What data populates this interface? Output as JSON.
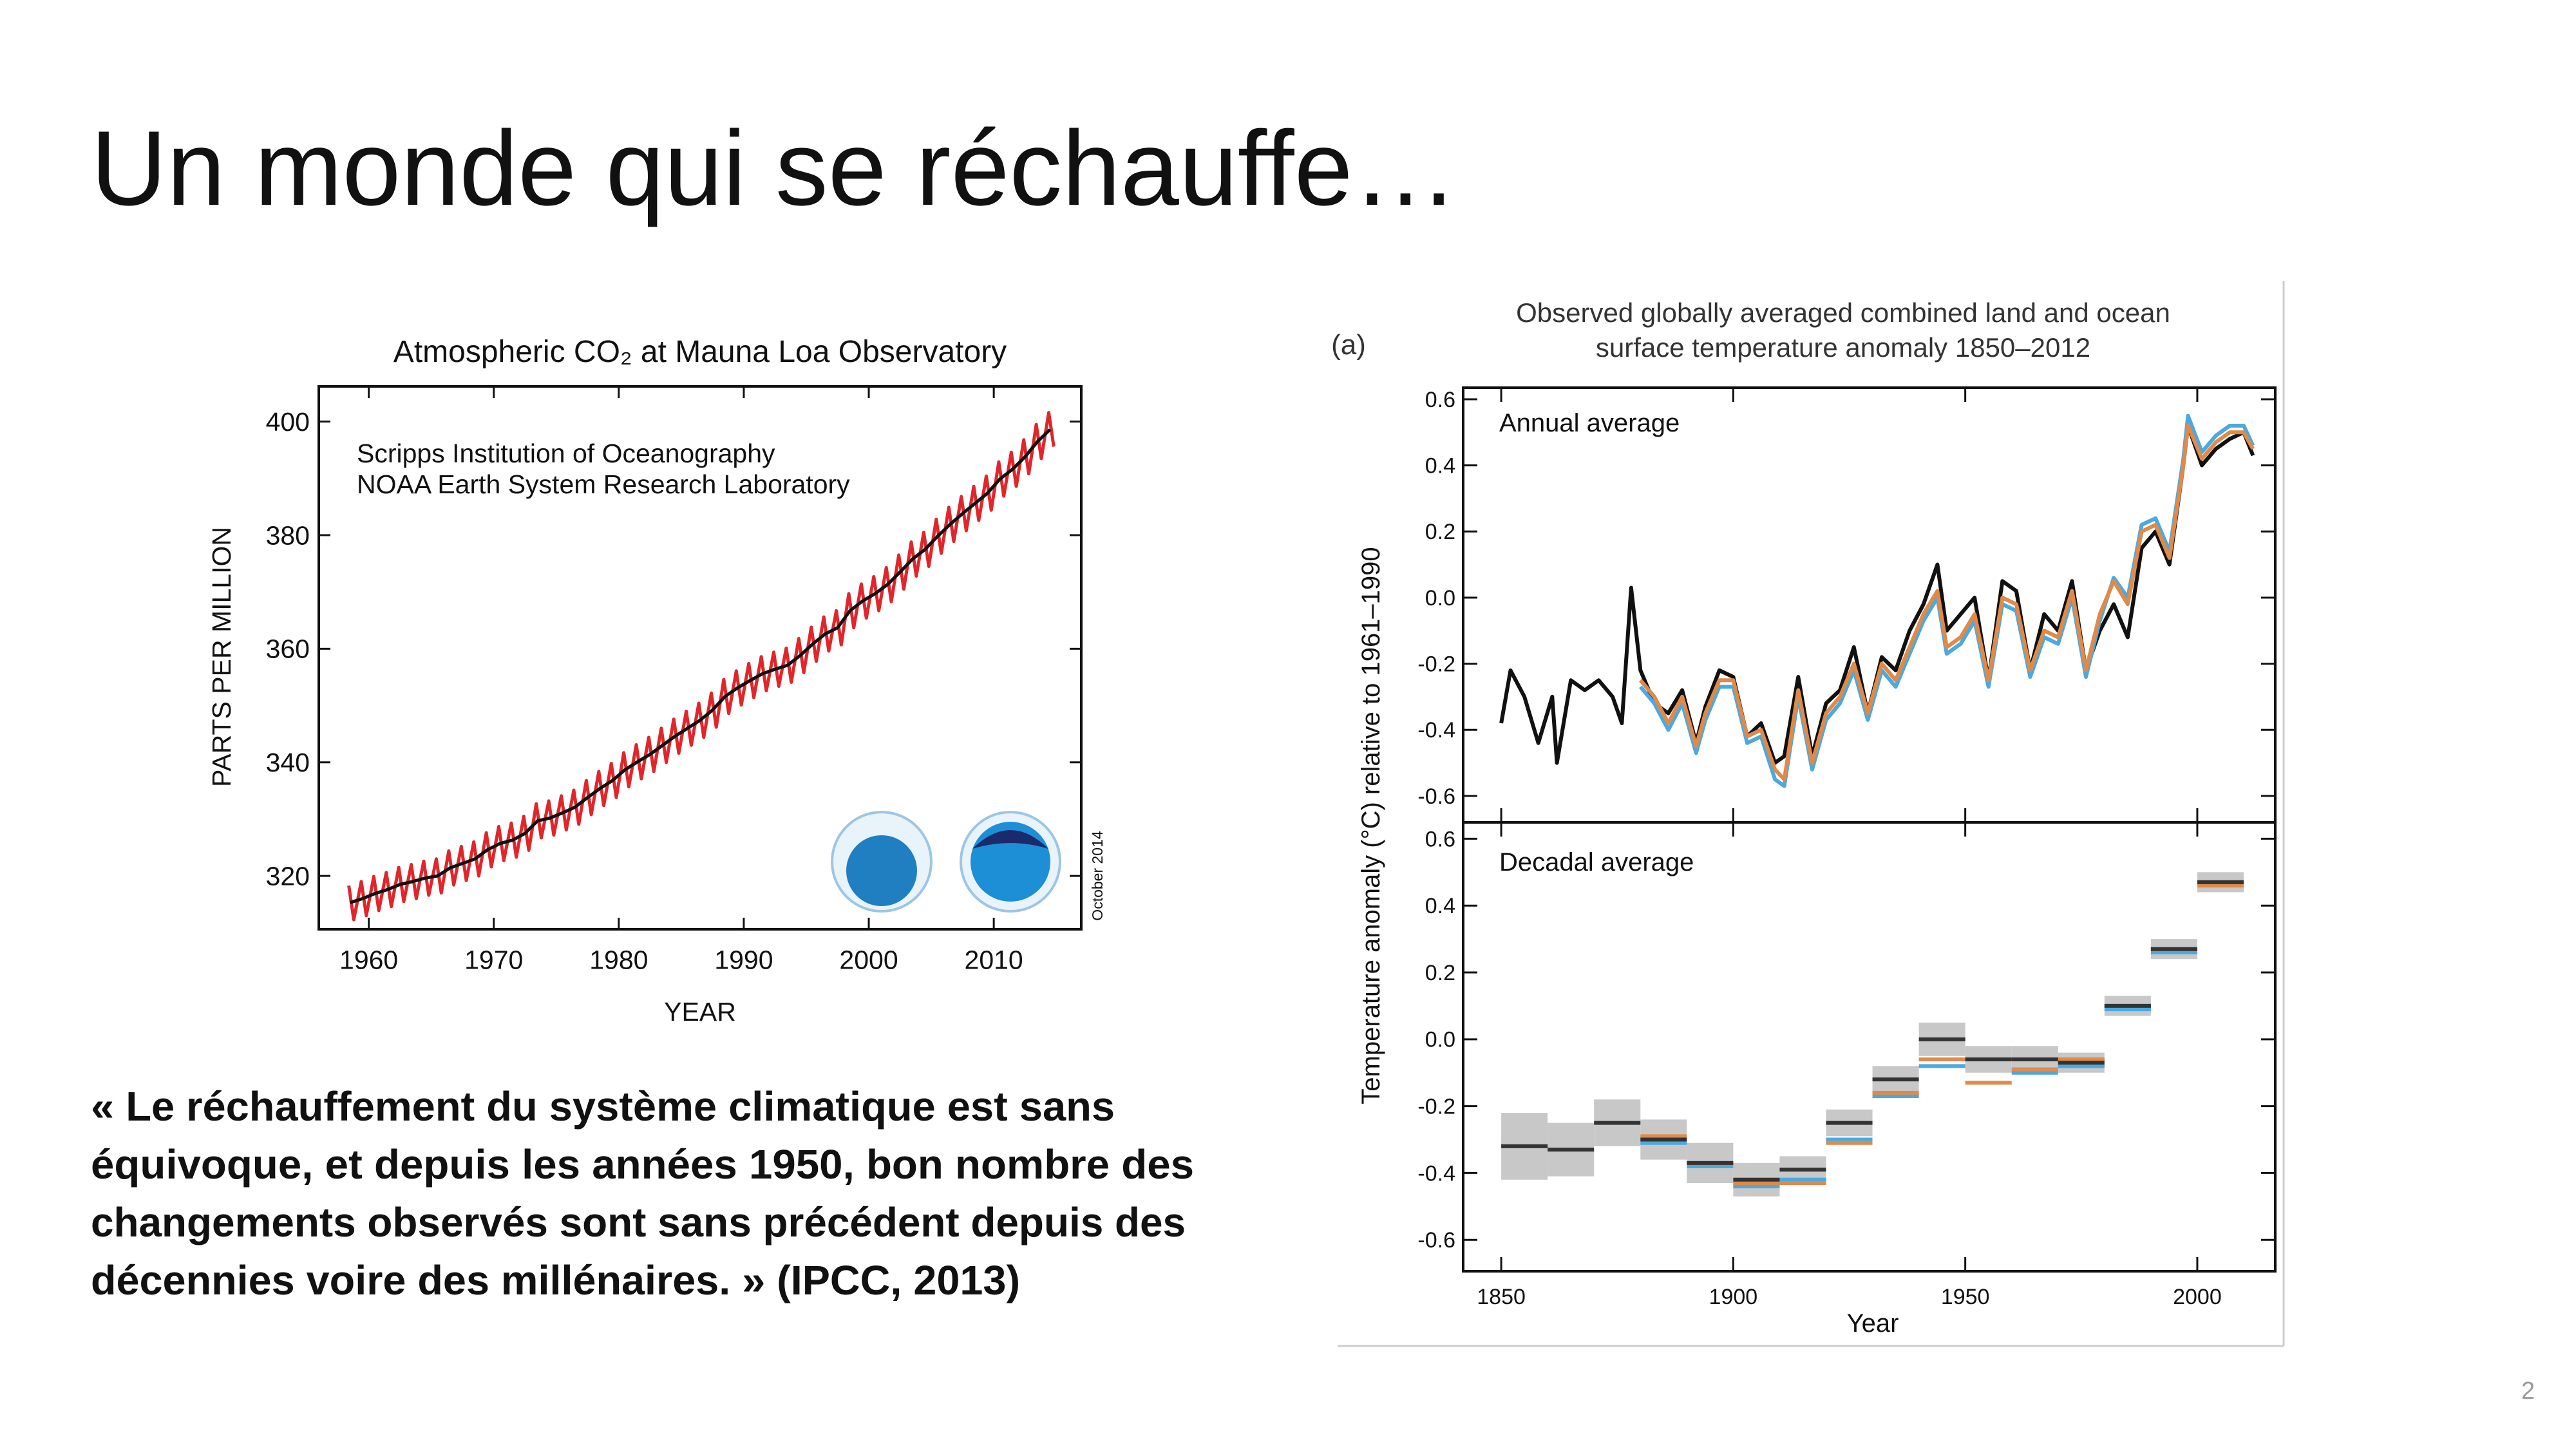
{
  "slide": {
    "title": "Un monde qui se réchauffe…",
    "quote": [
      "« Le réchauffement du système climatique est sans",
      "équivoque, et depuis les années 1950, bon nombre des",
      "changements observés sont sans précédent depuis des",
      "décennies voire des millénaires. » (IPCC, 2013)"
    ],
    "page_number": "2"
  },
  "chart_data": [
    {
      "type": "line",
      "title": "Atmospheric CO₂ at Mauna Loa Observatory",
      "annotations": [
        "Scripps Institution of Oceanography",
        "NOAA Earth System Research Laboratory",
        "October 2014"
      ],
      "xlabel": "YEAR",
      "ylabel": "PARTS PER MILLION",
      "xlim": [
        1956,
        2017
      ],
      "ylim": [
        310.6,
        406.2
      ],
      "xticks": [
        1960,
        1970,
        1980,
        1990,
        2000,
        2010
      ],
      "yticks": [
        320,
        340,
        360,
        380,
        400
      ],
      "series": [
        {
          "color": "#e0262b",
          "x": [
            1958.4,
            1958.8,
            1959.4,
            1959.8,
            1960.4,
            1960.8,
            1961.4,
            1961.8,
            1962.4,
            1962.8,
            1963.4,
            1963.8,
            1964.4,
            1964.8,
            1965.4,
            1965.8,
            1966.4,
            1966.8,
            1967.4,
            1967.8,
            1968.4,
            1968.8,
            1969.4,
            1969.8,
            1970.4,
            1970.8,
            1971.4,
            1971.8,
            1972.4,
            1972.8,
            1973.4,
            1973.8,
            1974.4,
            1974.8,
            1975.4,
            1975.8,
            1976.4,
            1976.8,
            1977.4,
            1977.8,
            1978.4,
            1978.8,
            1979.4,
            1979.8,
            1980.4,
            1980.8,
            1981.4,
            1981.8,
            1982.4,
            1982.8,
            1983.4,
            1983.8,
            1984.4,
            1984.8,
            1985.4,
            1985.8,
            1986.4,
            1986.8,
            1987.4,
            1987.8,
            1988.4,
            1988.8,
            1989.4,
            1989.8,
            1990.4,
            1990.8,
            1991.4,
            1991.8,
            1992.4,
            1992.8,
            1993.4,
            1993.8,
            1994.4,
            1994.8,
            1995.4,
            1995.8,
            1996.4,
            1996.8,
            1997.4,
            1997.8,
            1998.4,
            1998.8,
            1999.4,
            1999.8,
            2000.4,
            2000.8,
            2001.4,
            2001.8,
            2002.4,
            2002.8,
            2003.4,
            2003.8,
            2004.4,
            2004.8,
            2005.4,
            2005.8,
            2006.4,
            2006.8,
            2007.4,
            2007.8,
            2008.4,
            2008.8,
            2009.4,
            2009.8,
            2010.4,
            2010.8,
            2011.4,
            2011.8,
            2012.4,
            2012.8,
            2013.4,
            2013.8,
            2014.4,
            2014.8
          ],
          "values": [
            318.3,
            312.3,
            319.0,
            313.0,
            319.9,
            313.9,
            320.6,
            314.6,
            321.5,
            315.5,
            322.0,
            316.0,
            322.6,
            316.6,
            323.0,
            317.0,
            324.4,
            318.4,
            325.2,
            319.2,
            326.0,
            320.0,
            327.6,
            321.6,
            328.7,
            322.7,
            329.3,
            323.3,
            330.5,
            324.5,
            332.7,
            326.7,
            333.2,
            327.2,
            334.1,
            328.1,
            335.1,
            329.1,
            336.8,
            330.8,
            338.4,
            332.4,
            339.8,
            333.8,
            341.7,
            335.7,
            343.1,
            337.1,
            344.4,
            338.4,
            346.0,
            340.0,
            347.6,
            341.6,
            349.0,
            343.0,
            350.4,
            344.4,
            352.2,
            346.2,
            354.6,
            348.6,
            356.1,
            350.1,
            357.4,
            351.4,
            358.6,
            352.6,
            359.4,
            353.4,
            360.1,
            354.1,
            361.8,
            355.8,
            363.8,
            357.8,
            365.6,
            359.6,
            366.7,
            360.7,
            369.7,
            363.7,
            371.4,
            365.4,
            372.7,
            366.7,
            374.3,
            368.3,
            376.5,
            370.5,
            378.8,
            372.8,
            380.5,
            374.5,
            382.8,
            376.8,
            384.9,
            378.9,
            386.8,
            380.8,
            388.6,
            382.6,
            390.4,
            384.4,
            392.9,
            386.9,
            394.6,
            388.6,
            396.8,
            390.8,
            399.5,
            393.5,
            401.6,
            395.6
          ]
        },
        {
          "color": "#111111",
          "x": [
            1958.5,
            1959.5,
            1960.5,
            1961.5,
            1962.5,
            1963.5,
            1964.5,
            1965.5,
            1966.5,
            1967.5,
            1968.5,
            1969.5,
            1970.5,
            1971.5,
            1972.5,
            1973.5,
            1974.5,
            1975.5,
            1976.5,
            1977.5,
            1978.5,
            1979.5,
            1980.5,
            1981.5,
            1982.5,
            1983.5,
            1984.5,
            1985.5,
            1986.5,
            1987.5,
            1988.5,
            1989.5,
            1990.5,
            1991.5,
            1992.5,
            1993.5,
            1994.5,
            1995.5,
            1996.5,
            1997.5,
            1998.5,
            1999.5,
            2000.5,
            2001.5,
            2002.5,
            2003.5,
            2004.5,
            2005.5,
            2006.5,
            2007.5,
            2008.5,
            2009.5,
            2010.5,
            2011.5,
            2012.5,
            2013.5,
            2014.5
          ],
          "values": [
            315.3,
            316.0,
            316.9,
            317.6,
            318.5,
            319.0,
            319.6,
            320.0,
            321.4,
            322.2,
            323.0,
            324.6,
            325.7,
            326.3,
            327.5,
            329.7,
            330.2,
            331.1,
            332.1,
            333.8,
            335.4,
            336.8,
            338.7,
            340.1,
            341.4,
            343.0,
            344.6,
            346.0,
            347.4,
            349.2,
            351.6,
            353.1,
            354.4,
            355.6,
            356.4,
            357.1,
            358.8,
            360.8,
            362.6,
            363.7,
            366.7,
            368.4,
            369.7,
            371.3,
            373.5,
            375.8,
            377.5,
            379.8,
            381.9,
            383.8,
            385.6,
            387.4,
            389.9,
            391.6,
            393.8,
            396.5,
            398.6
          ]
        }
      ]
    },
    {
      "type": "line",
      "title": [
        "Observed globally averaged combined land and ocean",
        "surface temperature anomaly 1850–2012"
      ],
      "panel_label": "(a)",
      "annotation": "Annual average",
      "ylabel": "Temperature anomaly (°C) relative to 1961–1990",
      "xlim": [
        1841.8,
        2016.8
      ],
      "ylim": [
        -0.68,
        0.635
      ],
      "xticks": [
        1850,
        1900,
        1950,
        2000
      ],
      "yticks": [
        -0.6,
        -0.4,
        -0.2,
        {
          "value": 0,
          "label": "0.0"
        },
        0.2,
        0.4,
        0.6
      ],
      "series": [
        {
          "color": "#111111",
          "x": [
            1850,
            1852,
            1855,
            1858,
            1861,
            1862,
            1865,
            1868,
            1871,
            1874,
            1876,
            1878,
            1880,
            1883,
            1886,
            1889,
            1892,
            1894,
            1897,
            1900,
            1903,
            1906,
            1909,
            1911,
            1914,
            1917,
            1920,
            1923,
            1926,
            1929,
            1932,
            1935,
            1938,
            1941,
            1944,
            1946,
            1949,
            1952,
            1955,
            1958,
            1961,
            1964,
            1967,
            1970,
            1973,
            1976,
            1979,
            1982,
            1985,
            1988,
            1991,
            1994,
            1997,
            1998,
            2001,
            2004,
            2007,
            2010,
            2012
          ],
          "values": [
            -0.38,
            -0.22,
            -0.3,
            -0.44,
            -0.3,
            -0.5,
            -0.25,
            -0.28,
            -0.25,
            -0.3,
            -0.38,
            0.03,
            -0.22,
            -0.32,
            -0.35,
            -0.28,
            -0.44,
            -0.33,
            -0.22,
            -0.24,
            -0.42,
            -0.38,
            -0.5,
            -0.48,
            -0.24,
            -0.48,
            -0.32,
            -0.28,
            -0.15,
            -0.35,
            -0.18,
            -0.22,
            -0.1,
            -0.02,
            0.1,
            -0.1,
            -0.05,
            0.0,
            -0.25,
            0.05,
            0.02,
            -0.22,
            -0.05,
            -0.1,
            0.05,
            -0.22,
            -0.1,
            -0.02,
            -0.12,
            0.15,
            0.2,
            0.1,
            0.4,
            0.52,
            0.4,
            0.45,
            0.48,
            0.5,
            0.43
          ]
        },
        {
          "color": "#4aa9e0",
          "x": [
            1880,
            1883,
            1886,
            1889,
            1892,
            1894,
            1897,
            1900,
            1903,
            1906,
            1909,
            1911,
            1914,
            1917,
            1920,
            1923,
            1926,
            1929,
            1932,
            1935,
            1938,
            1941,
            1944,
            1946,
            1949,
            1952,
            1955,
            1958,
            1961,
            1964,
            1967,
            1970,
            1973,
            1976,
            1979,
            1982,
            1985,
            1988,
            1991,
            1994,
            1997,
            1998,
            2001,
            2004,
            2007,
            2010,
            2012
          ],
          "values": [
            -0.27,
            -0.32,
            -0.4,
            -0.32,
            -0.47,
            -0.37,
            -0.27,
            -0.27,
            -0.44,
            -0.42,
            -0.55,
            -0.57,
            -0.3,
            -0.52,
            -0.37,
            -0.32,
            -0.22,
            -0.37,
            -0.22,
            -0.27,
            -0.17,
            -0.07,
            0.0,
            -0.17,
            -0.14,
            -0.07,
            -0.27,
            -0.02,
            -0.04,
            -0.24,
            -0.12,
            -0.14,
            0.0,
            -0.24,
            -0.07,
            0.06,
            0.0,
            0.22,
            0.24,
            0.14,
            0.42,
            0.55,
            0.44,
            0.49,
            0.52,
            0.52,
            0.46
          ]
        },
        {
          "color": "#e08a4a",
          "x": [
            1880,
            1883,
            1886,
            1889,
            1892,
            1894,
            1897,
            1900,
            1903,
            1906,
            1909,
            1911,
            1914,
            1917,
            1920,
            1923,
            1926,
            1929,
            1932,
            1935,
            1938,
            1941,
            1944,
            1946,
            1949,
            1952,
            1955,
            1958,
            1961,
            1964,
            1967,
            1970,
            1973,
            1976,
            1979,
            1982,
            1985,
            1988,
            1991,
            1994,
            1997,
            1998,
            2001,
            2004,
            2007,
            2010,
            2012
          ],
          "values": [
            -0.25,
            -0.3,
            -0.38,
            -0.3,
            -0.45,
            -0.35,
            -0.25,
            -0.25,
            -0.42,
            -0.4,
            -0.52,
            -0.55,
            -0.28,
            -0.5,
            -0.35,
            -0.3,
            -0.2,
            -0.35,
            -0.2,
            -0.25,
            -0.15,
            -0.05,
            0.02,
            -0.15,
            -0.12,
            -0.05,
            -0.25,
            0.0,
            -0.02,
            -0.22,
            -0.1,
            -0.12,
            0.02,
            -0.22,
            -0.05,
            0.05,
            -0.02,
            0.2,
            0.22,
            0.12,
            0.4,
            0.52,
            0.42,
            0.47,
            0.5,
            0.5,
            0.45
          ]
        }
      ]
    },
    {
      "type": "segment",
      "annotation": "Decadal average",
      "xlabel": "Year",
      "xlim": [
        1841.8,
        2016.8
      ],
      "ylim": [
        -0.694,
        0.649
      ],
      "xticks": [
        1850,
        1900,
        1950,
        2000
      ],
      "yticks": [
        -0.6,
        -0.4,
        -0.2,
        {
          "value": 0,
          "label": "0.0"
        },
        0.2,
        0.4,
        0.6
      ],
      "box_color": "#c8c8c8",
      "series": [
        {
          "color": "#4aa9e0",
          "bins": [
            1880,
            1890,
            1900,
            1910,
            1920,
            1930,
            1940,
            1950,
            1960,
            1970,
            1980,
            1990,
            2000,
            2010
          ],
          "values": [
            -0.31,
            -0.38,
            -0.44,
            -0.42,
            -0.3,
            -0.17,
            -0.08,
            -0.06,
            -0.1,
            -0.08,
            0.09,
            0.26,
            0.47
          ]
        },
        {
          "color": "#e08a4a",
          "bins": [
            1880,
            1890,
            1900,
            1910,
            1920,
            1930,
            1940,
            1950,
            1960,
            1970,
            1980,
            1990,
            2000,
            2010
          ],
          "values": [
            -0.29,
            -0.37,
            -0.43,
            -0.43,
            -0.31,
            -0.16,
            -0.06,
            -0.13,
            -0.09,
            -0.06,
            0.1,
            0.27,
            0.46
          ]
        },
        {
          "color": "#333333",
          "bins": [
            1850,
            1860,
            1870,
            1880,
            1890,
            1900,
            1910,
            1920,
            1930,
            1940,
            1950,
            1960,
            1970,
            1980,
            1990,
            2000,
            2010
          ],
          "values": [
            -0.32,
            -0.33,
            -0.25,
            -0.3,
            -0.37,
            -0.42,
            -0.39,
            -0.25,
            -0.12,
            0.0,
            -0.06,
            -0.06,
            -0.07,
            0.1,
            0.27,
            0.47
          ],
          "error": [
            0.1,
            0.08,
            0.07,
            0.06,
            0.06,
            0.05,
            0.04,
            0.04,
            0.04,
            0.05,
            0.04,
            0.04,
            0.03,
            0.03,
            0.03,
            0.03
          ]
        }
      ]
    }
  ]
}
